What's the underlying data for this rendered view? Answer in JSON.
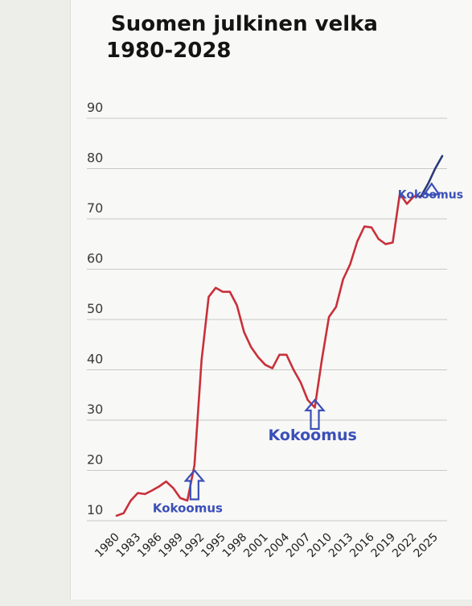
{
  "chart_data": {
    "type": "line",
    "title": "Suomen julkinen velka 1980-2028",
    "xlabel": "",
    "ylabel": "",
    "xlim": [
      1980,
      2026
    ],
    "ylim": [
      10,
      90
    ],
    "y_ticks": [
      10,
      20,
      30,
      40,
      50,
      60,
      70,
      80,
      90
    ],
    "x_ticks": [
      1980,
      1983,
      1986,
      1989,
      1992,
      1995,
      1998,
      2001,
      2004,
      2007,
      2010,
      2013,
      2016,
      2019,
      2022,
      2025
    ],
    "grid": true,
    "series": [
      {
        "color": "#c8303a",
        "x": [
          1980,
          1981,
          1982,
          1983,
          1984,
          1985,
          1986,
          1987,
          1988,
          1989,
          1990,
          1991,
          1992,
          1993,
          1994,
          1995,
          1996,
          1997,
          1998,
          1999,
          2000,
          2001,
          2002,
          2003,
          2004,
          2005,
          2006,
          2007,
          2008,
          2009,
          2010,
          2011,
          2012,
          2013,
          2014,
          2015,
          2016,
          2017,
          2018,
          2019,
          2020,
          2021,
          2022,
          2023
        ],
        "y": [
          11,
          11.5,
          14,
          15.5,
          15.3,
          16,
          16.8,
          17.8,
          16.5,
          14.5,
          14,
          21,
          42,
          54.5,
          56.3,
          55.5,
          55.5,
          52.8,
          47.5,
          44.5,
          42.5,
          41,
          40.3,
          43,
          43,
          40,
          37.5,
          34,
          32.5,
          42,
          50.5,
          52.5,
          58,
          61,
          65.5,
          68.5,
          68.3,
          66,
          65,
          65.3,
          75,
          73,
          74.5,
          74.5
        ]
      },
      {
        "color": "#2b3a78",
        "x": [
          2023,
          2024,
          2025,
          2026
        ],
        "y": [
          74.5,
          77,
          80,
          82.5
        ]
      }
    ],
    "annotations": [
      {
        "text": "Kokoomus",
        "x": 1991,
        "y": 20,
        "color": "#3b4fb8"
      },
      {
        "text": "Kokoomus",
        "x": 2008,
        "y": 34,
        "color": "#3b4fb8"
      },
      {
        "text": "Kokoomus",
        "x": 2024.5,
        "y": 77,
        "color": "#3b4fb8"
      }
    ]
  }
}
